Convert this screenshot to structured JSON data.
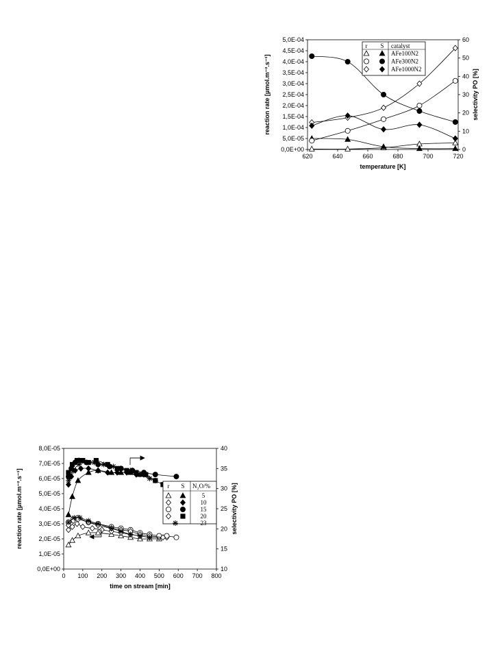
{
  "chart_data": [
    {
      "type": "scatter",
      "xlabel": "temperature [K]",
      "ylabel": "reaction rate [µmol.m⁻².s⁻¹]",
      "y2label": "selectivity PO [%]",
      "xlim": [
        620,
        725
      ],
      "xticks": [
        "620",
        "640",
        "660",
        "680",
        "700",
        "720"
      ],
      "ylim": [
        0,
        0.0005
      ],
      "yticks": [
        "0,0E+00",
        "5,0E-05",
        "1,0E-04",
        "1,5E-04",
        "2,0E-04",
        "2,5E-04",
        "3,0E-04",
        "3,5E-04",
        "4,0E-04",
        "4,5E-04",
        "5,0E-04"
      ],
      "y2lim": [
        0,
        60
      ],
      "y2ticks": [
        "0",
        "10",
        "20",
        "30",
        "40",
        "50",
        "60"
      ],
      "grid": false,
      "legend_placement": "top-center",
      "legend_headers": [
        "r",
        "S",
        "catalyst"
      ],
      "series": [
        {
          "name": "AFe100N2",
          "quantity": "r",
          "axis": "left",
          "marker": "triangle",
          "filled": false,
          "x": [
            623,
            648,
            673,
            698,
            723
          ],
          "values": [
            2e-06,
            2e-06,
            8e-06,
            2.5e-05,
            3e-05
          ]
        },
        {
          "name": "AFe100N2",
          "quantity": "S",
          "axis": "right",
          "marker": "triangle",
          "filled": true,
          "x": [
            623,
            648,
            673,
            698,
            723
          ],
          "values": [
            6,
            5.5,
            1.5,
            0.5,
            0.5
          ]
        },
        {
          "name": "AFe300N2",
          "quantity": "r",
          "axis": "left",
          "marker": "circle",
          "filled": false,
          "x": [
            623,
            648,
            673,
            698,
            723
          ],
          "values": [
            4e-05,
            8.5e-05,
            0.000138,
            0.0002,
            0.000313
          ]
        },
        {
          "name": "AFe300N2",
          "quantity": "S",
          "axis": "right",
          "marker": "circle",
          "filled": true,
          "x": [
            623,
            648,
            673,
            698,
            723
          ],
          "values": [
            51,
            48,
            30,
            21,
            15
          ]
        },
        {
          "name": "AFe1000N2",
          "quantity": "r",
          "axis": "left",
          "marker": "diamond",
          "filled": false,
          "x": [
            623,
            648,
            673,
            698,
            723
          ],
          "values": [
            0.000123,
            0.000145,
            0.00019,
            0.0003,
            0.000462
          ]
        },
        {
          "name": "AFe1000N2",
          "quantity": "S",
          "axis": "right",
          "marker": "diamond",
          "filled": true,
          "x": [
            623,
            648,
            673,
            698,
            723
          ],
          "values": [
            13,
            18.5,
            11,
            13.5,
            6
          ]
        }
      ]
    },
    {
      "type": "scatter",
      "xlabel": "time on stream [min]",
      "ylabel": "reaction rate [µmol.m⁻².s⁻¹]",
      "y2label": "selectivity PO [%]",
      "xlim": [
        0,
        800
      ],
      "xticks": [
        "0",
        "100",
        "200",
        "300",
        "400",
        "500",
        "600",
        "700",
        "800"
      ],
      "ylim": [
        0,
        8e-05
      ],
      "yticks": [
        "0,0E+00",
        "1,0E-05",
        "2,0E-05",
        "3,0E-05",
        "4,0E-05",
        "5,0E-05",
        "6,0E-05",
        "7,0E-05",
        "8,0E-05"
      ],
      "y2lim": [
        10,
        40
      ],
      "y2ticks": [
        "10",
        "15",
        "20",
        "25",
        "30",
        "35",
        "40"
      ],
      "grid": false,
      "legend_placement": "right",
      "legend_headers": [
        "r",
        "S",
        "N₂O/%"
      ],
      "legend_rows": [
        "5",
        "10",
        "15",
        "20",
        "23"
      ],
      "series": [
        {
          "name": "5",
          "quantity": "r",
          "axis": "left",
          "marker": "triangle",
          "filled": false,
          "x": [
            25,
            45,
            75,
            130,
            180,
            250,
            300,
            350,
            400,
            450,
            500
          ],
          "values": [
            1.6e-05,
            1.9e-05,
            2.2e-05,
            2.4e-05,
            2.4e-05,
            2.3e-05,
            2.2e-05,
            2.1e-05,
            2e-05,
            2e-05,
            2e-05
          ]
        },
        {
          "name": "5",
          "quantity": "S",
          "axis": "right",
          "marker": "triangle",
          "filled": true,
          "x": [
            25,
            45,
            75,
            130,
            180,
            250,
            300,
            350,
            400,
            430
          ],
          "values": [
            23.5,
            28,
            32,
            34,
            34.5,
            34,
            34,
            34,
            33.5,
            33.5
          ]
        },
        {
          "name": "10",
          "quantity": "r",
          "axis": "left",
          "marker": "diamond",
          "filled": false,
          "x": [
            25,
            45,
            70,
            100,
            150,
            200,
            250,
            300,
            350,
            400,
            450,
            500,
            540
          ],
          "values": [
            2.6e-05,
            2.8e-05,
            3e-05,
            2.8e-05,
            2.7e-05,
            2.6e-05,
            2.5e-05,
            2.4e-05,
            2.3e-05,
            2.2e-05,
            2.1e-05,
            2.1e-05,
            2.1e-05
          ]
        },
        {
          "name": "10",
          "quantity": "S",
          "axis": "right",
          "marker": "diamond",
          "filled": true,
          "x": [
            25,
            40,
            60,
            90,
            130,
            180,
            230,
            280,
            330,
            380,
            420
          ],
          "values": [
            31,
            33,
            34.5,
            35,
            35,
            34.5,
            34,
            34,
            34,
            33.5,
            33.5
          ]
        },
        {
          "name": "15",
          "quantity": "r",
          "axis": "left",
          "marker": "circle",
          "filled": false,
          "x": [
            25,
            50,
            75,
            130,
            180,
            250,
            300,
            350,
            400,
            450,
            500,
            540,
            590
          ],
          "values": [
            3.1e-05,
            3.3e-05,
            3.4e-05,
            3.1e-05,
            3e-05,
            2.8e-05,
            2.7e-05,
            2.6e-05,
            2.4e-05,
            2.3e-05,
            2.2e-05,
            2.2e-05,
            2.1e-05
          ]
        },
        {
          "name": "15",
          "quantity": "S",
          "axis": "right",
          "marker": "circle",
          "filled": true,
          "x": [
            25,
            40,
            60,
            80,
            120,
            180,
            240,
            300,
            360,
            420,
            480,
            590
          ],
          "values": [
            33,
            35,
            36.5,
            37,
            36.5,
            36,
            35.5,
            35,
            34.5,
            34,
            33.5,
            33
          ]
        },
        {
          "name": "20",
          "quantity": "r",
          "axis": "left",
          "marker": "diamond",
          "filled": false,
          "x": [
            25,
            50,
            75,
            130,
            180,
            250,
            300,
            350,
            400,
            450,
            520
          ],
          "values": [
            2.9e-05,
            3.2e-05,
            3.3e-05,
            3.1e-05,
            2.9e-05,
            2.7e-05,
            2.6e-05,
            2.5e-05,
            2.3e-05,
            2.2e-05,
            2.1e-05
          ]
        },
        {
          "name": "20",
          "quantity": "S",
          "axis": "right",
          "marker": "square",
          "filled": true,
          "x": [
            25,
            45,
            70,
            100,
            130,
            170,
            230,
            280,
            330,
            380,
            430,
            480,
            520
          ],
          "values": [
            34,
            36,
            37,
            37,
            36.5,
            37,
            36,
            35,
            34.5,
            34,
            33.5,
            32,
            31
          ]
        },
        {
          "name": "23",
          "quantity": "r",
          "axis": "left",
          "marker": "star",
          "filled": false,
          "x": [
            25,
            55,
            85,
            130,
            180,
            250,
            300,
            350,
            400,
            450
          ],
          "values": [
            3.1e-05,
            3.4e-05,
            3.4e-05,
            3.2e-05,
            3e-05,
            2.7e-05,
            2.5e-05,
            2.3e-05,
            2.2e-05,
            2.1e-05
          ]
        },
        {
          "name": "23",
          "quantity": "S",
          "axis": "right",
          "marker": "star",
          "filled": false,
          "x": [
            25,
            50,
            80,
            120,
            160,
            210,
            260,
            300,
            350,
            400,
            450,
            480
          ],
          "values": [
            32,
            34.5,
            36,
            36.5,
            36.5,
            36,
            35.5,
            35,
            34.5,
            33.5,
            32.5,
            32
          ]
        }
      ]
    }
  ]
}
